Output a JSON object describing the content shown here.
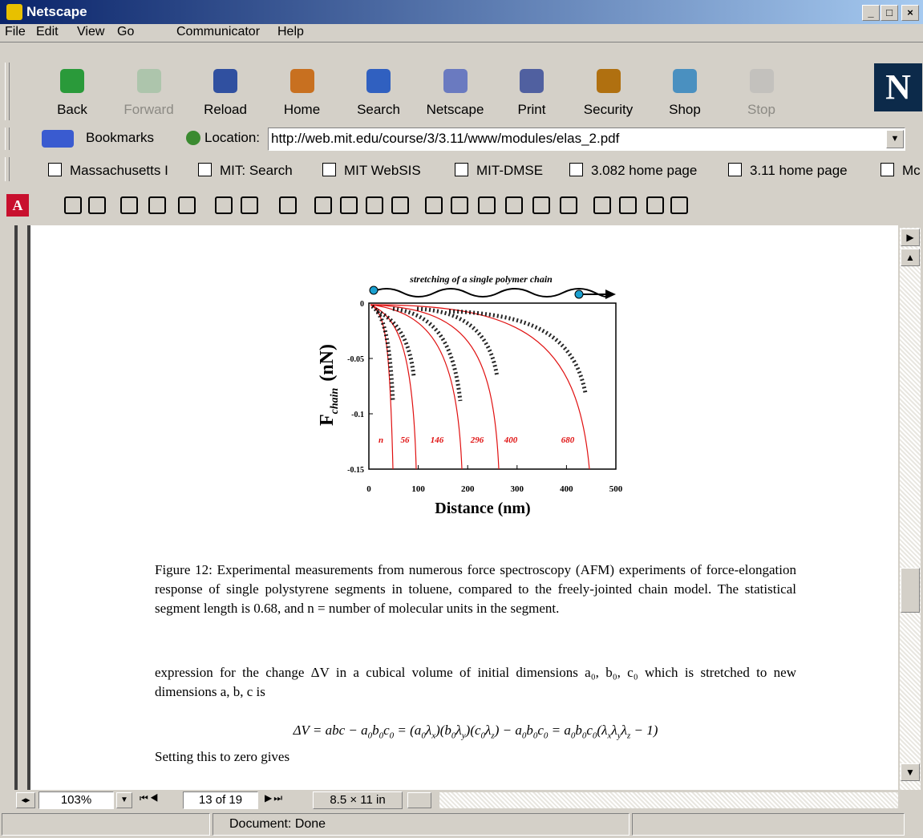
{
  "window": {
    "title": "Netscape"
  },
  "menu": [
    "File",
    "Edit",
    "View",
    "Go",
    "Communicator",
    "Help"
  ],
  "nav_buttons": [
    {
      "label": "Back"
    },
    {
      "label": "Forward",
      "disabled": true
    },
    {
      "label": "Reload"
    },
    {
      "label": "Home"
    },
    {
      "label": "Search"
    },
    {
      "label": "Netscape"
    },
    {
      "label": "Print"
    },
    {
      "label": "Security"
    },
    {
      "label": "Shop"
    },
    {
      "label": "Stop",
      "disabled": true
    }
  ],
  "location": {
    "bookmarks": "Bookmarks",
    "label": "Location:",
    "url": "http://web.mit.edu/course/3/3.11/www/modules/elas_2.pdf"
  },
  "personal_toolbar": [
    "Massachusetts I",
    "MIT: Search",
    "MIT WebSIS",
    "MIT-DMSE",
    "3.082 home page",
    "3.11 home page",
    "Mc"
  ],
  "document": {
    "figure": {
      "title": "stretching of a single polymer chain",
      "ylabel_main": "F",
      "ylabel_sub": "chain",
      "ylabel_unit": "(nN)",
      "xlabel": "Distance (nm)",
      "xlim": [
        0,
        500
      ],
      "ylim": [
        -0.15,
        0
      ],
      "xticks": [
        0,
        100,
        200,
        300,
        400,
        500
      ],
      "yticks": [
        0,
        -0.05,
        -0.1,
        -0.15
      ],
      "curve_labels": [
        "n",
        "56",
        "146",
        "296",
        "400",
        "680"
      ]
    },
    "caption": "Figure 12: Experimental measurements from numerous force spectroscopy (AFM) experiments of force-elongation response of single polystyrene segments in toluene, compared to the freely-jointed chain model. The statistical segment length is 0.68, and n = number of molecular units in the segment.",
    "paragraph": "expression for the change ΔV in a cubical volume of initial dimensions a₀, b₀, c₀ which is stretched to new dimensions a, b, c is",
    "equation": [
      "ΔV = abc − a",
      "0",
      "b",
      "0",
      "c",
      "0",
      " = (a",
      "0",
      "λ",
      "x",
      ")(b",
      "0",
      "λ",
      "y",
      ")(c",
      "0",
      "λ",
      "z",
      ") − a",
      "0",
      "b",
      "0",
      "c",
      "0",
      " = a",
      "0",
      "b",
      "0",
      "c",
      "0",
      "(λ",
      "x",
      "λ",
      "y",
      "λ",
      "z",
      " − 1)"
    ],
    "closing": "Setting this to zero gives"
  },
  "pdf_status": {
    "zoom": "103%",
    "page": "13 of 19",
    "size": "8.5 × 11 in"
  },
  "status": "Document: Done"
}
